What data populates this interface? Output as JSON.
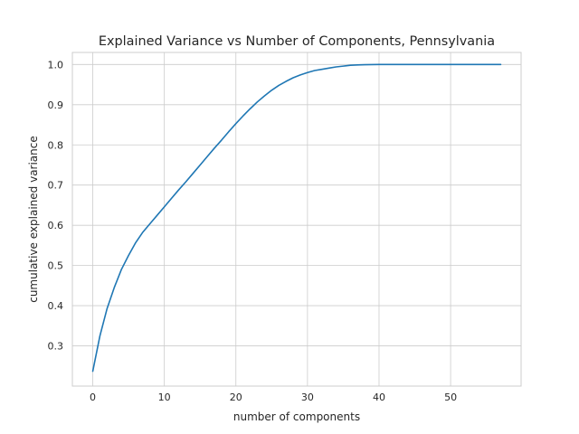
{
  "chart_data": {
    "type": "line",
    "title": "Explained Variance vs Number of Components, Pennsylvania",
    "xlabel": "number of components",
    "ylabel": "cumulative explained variance",
    "xlim": [
      -2.85,
      59.85
    ],
    "ylim": [
      0.2,
      1.03
    ],
    "xticks": [
      0,
      10,
      20,
      30,
      40,
      50
    ],
    "yticks": [
      0.3,
      0.4,
      0.5,
      0.6,
      0.7,
      0.8,
      0.9,
      1.0
    ],
    "xtick_labels": [
      "0",
      "10",
      "20",
      "30",
      "40",
      "50"
    ],
    "ytick_labels": [
      "0.3",
      "0.4",
      "0.5",
      "0.6",
      "0.7",
      "0.8",
      "0.9",
      "1.0"
    ],
    "grid": true,
    "line_color": "#1f77b4",
    "series": [
      {
        "x": [
          0,
          1,
          2,
          3,
          4,
          5,
          6,
          7,
          8,
          9,
          10,
          11,
          12,
          13,
          14,
          15,
          16,
          17,
          18,
          19,
          20,
          21,
          22,
          23,
          24,
          25,
          26,
          27,
          28,
          29,
          30,
          31,
          32,
          33,
          34,
          35,
          36,
          37,
          38,
          39,
          40,
          41,
          42,
          43,
          44,
          45,
          46,
          47,
          48,
          49,
          50,
          51,
          52,
          53,
          54,
          55,
          56,
          57
        ],
        "values": [
          0.237,
          0.325,
          0.393,
          0.445,
          0.49,
          0.525,
          0.557,
          0.583,
          0.604,
          0.625,
          0.646,
          0.667,
          0.688,
          0.708,
          0.729,
          0.75,
          0.771,
          0.792,
          0.812,
          0.833,
          0.853,
          0.872,
          0.89,
          0.907,
          0.922,
          0.936,
          0.948,
          0.958,
          0.967,
          0.974,
          0.98,
          0.985,
          0.988,
          0.991,
          0.994,
          0.996,
          0.998,
          0.999,
          0.9995,
          0.9998,
          1.0,
          1.0,
          1.0,
          1.0,
          1.0,
          1.0,
          1.0,
          1.0,
          1.0,
          1.0,
          1.0,
          1.0,
          1.0,
          1.0,
          1.0,
          1.0,
          1.0,
          1.0
        ]
      }
    ]
  }
}
